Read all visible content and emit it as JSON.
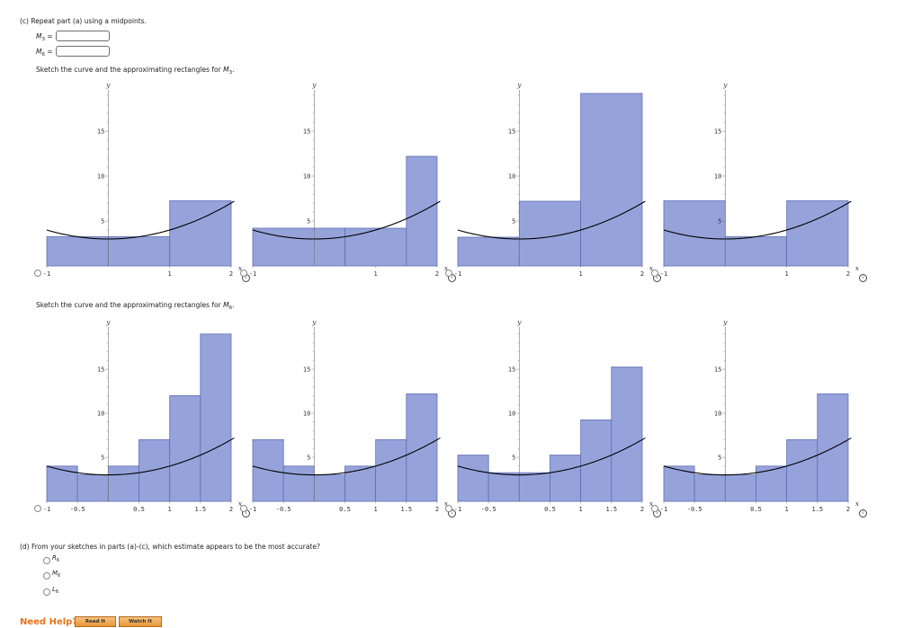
{
  "part_c": {
    "header": "(c)  Repeat part (a) using a midpoints.",
    "m3": {
      "letter": "M",
      "sub": "3",
      "eq": "="
    },
    "m6": {
      "letter": "M",
      "sub": "6",
      "eq": "="
    },
    "sketch_m3": {
      "prefix": "Sketch the curve and the approximating rectangles for ",
      "letter": "M",
      "sub": "3",
      "suffix": "."
    },
    "sketch_m6": {
      "prefix": "Sketch the curve and the approximating rectangles for ",
      "letter": "M",
      "sub": "6",
      "suffix": "."
    }
  },
  "part_d": {
    "question": "(d)  From your sketches in parts (a)-(c), which estimate appears to be the most accurate?",
    "options": [
      {
        "letter": "R",
        "sub": "6"
      },
      {
        "letter": "M",
        "sub": "6"
      },
      {
        "letter": "L",
        "sub": "6"
      }
    ]
  },
  "help": {
    "need_help": "Need Help?",
    "read_it": "Read It",
    "watch_it": "Watch It"
  },
  "info_icon_glyph": "i",
  "colors": {
    "bar_fill": "#96a3db",
    "bar_stroke": "#5d6db3",
    "curve": "#000000",
    "need_help": "#e8731a"
  },
  "chart_data": [
    {
      "type": "bar",
      "group": "M3",
      "x_label": "x",
      "y_label": "y",
      "xlim": [
        -1,
        2
      ],
      "ylim": [
        0,
        19
      ],
      "x_ticks": [
        "-1",
        "1",
        "2"
      ],
      "y_ticks": [
        "5",
        "10",
        "15"
      ],
      "rect_edges": [
        -1,
        0,
        1,
        2
      ],
      "heights": [
        3.25,
        3.25,
        7.25
      ],
      "function": "x^2 + 3"
    },
    {
      "type": "bar",
      "group": "M3",
      "x_label": "x",
      "y_label": "y",
      "xlim": [
        -1,
        2
      ],
      "ylim": [
        0,
        19
      ],
      "x_ticks": [
        "-1",
        "1",
        "2"
      ],
      "y_ticks": [
        "5",
        "10",
        "15"
      ],
      "rect_edges": [
        -1,
        0.5,
        1.5,
        2
      ],
      "heights": [
        4.2,
        4.2,
        12.2
      ],
      "function": "x^2 + 3"
    },
    {
      "type": "bar",
      "group": "M3",
      "x_label": "x",
      "y_label": "y",
      "xlim": [
        -1,
        2
      ],
      "ylim": [
        0,
        19
      ],
      "x_ticks": [
        "-1",
        "1",
        "2"
      ],
      "y_ticks": [
        "5",
        "10",
        "15"
      ],
      "rect_edges": [
        -1,
        0,
        1,
        2
      ],
      "heights": [
        3.2,
        7.2,
        19.2
      ],
      "function": "x^2 + 3"
    },
    {
      "type": "bar",
      "group": "M3",
      "x_label": "x",
      "y_label": "y",
      "xlim": [
        -1,
        2
      ],
      "ylim": [
        0,
        19
      ],
      "x_ticks": [
        "-1",
        "1",
        "2"
      ],
      "y_ticks": [
        "5",
        "10",
        "15"
      ],
      "rect_edges": [
        -1,
        0,
        1,
        2
      ],
      "heights": [
        7.25,
        3.25,
        7.25
      ],
      "function": "x^2 + 3"
    },
    {
      "type": "bar",
      "group": "M6",
      "x_label": "x",
      "y_label": "y",
      "xlim": [
        -1,
        2
      ],
      "ylim": [
        0,
        19
      ],
      "x_ticks": [
        "-1",
        "-0.5",
        "0.5",
        "1",
        "1.5",
        "2"
      ],
      "y_ticks": [
        "5",
        "10",
        "15"
      ],
      "rect_edges": [
        -1,
        -0.5,
        0,
        0.5,
        1,
        1.5,
        2
      ],
      "heights": [
        4,
        3,
        4,
        7,
        12,
        19
      ],
      "function": "x^2 + 3"
    },
    {
      "type": "bar",
      "group": "M6",
      "x_label": "x",
      "y_label": "y",
      "xlim": [
        -1,
        2
      ],
      "ylim": [
        0,
        19
      ],
      "x_ticks": [
        "-1",
        "-0.5",
        "0.5",
        "1",
        "1.5",
        "2"
      ],
      "y_ticks": [
        "5",
        "10",
        "15"
      ],
      "rect_edges": [
        -1,
        -0.5,
        0,
        0.5,
        1,
        1.5,
        2
      ],
      "heights": [
        7,
        4,
        3,
        4,
        7,
        12.2
      ],
      "function": "x^2 + 3"
    },
    {
      "type": "bar",
      "group": "M6",
      "x_label": "x",
      "y_label": "y",
      "xlim": [
        -1,
        2
      ],
      "ylim": [
        0,
        19
      ],
      "x_ticks": [
        "-1",
        "-0.5",
        "0.5",
        "1",
        "1.5",
        "2"
      ],
      "y_ticks": [
        "5",
        "10",
        "15"
      ],
      "rect_edges": [
        -1,
        -0.5,
        0,
        0.5,
        1,
        1.5,
        2
      ],
      "heights": [
        5.25,
        3.25,
        3.25,
        5.25,
        9.25,
        15.25
      ],
      "function": "x^2 + 3"
    },
    {
      "type": "bar",
      "group": "M6",
      "x_label": "x",
      "y_label": "y",
      "xlim": [
        -1,
        2
      ],
      "ylim": [
        0,
        19
      ],
      "x_ticks": [
        "-1",
        "-0.5",
        "0.5",
        "1",
        "1.5",
        "2"
      ],
      "y_ticks": [
        "5",
        "10",
        "15"
      ],
      "rect_edges": [
        -1,
        -0.5,
        0,
        0.5,
        1,
        1.5,
        2
      ],
      "heights": [
        4,
        3,
        3,
        4,
        7,
        12.2
      ],
      "function": "x^2 + 3"
    }
  ]
}
